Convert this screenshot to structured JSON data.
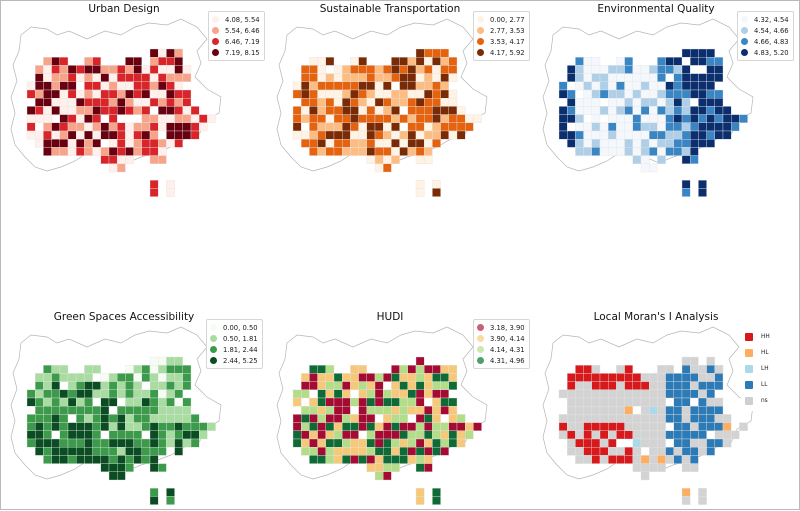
{
  "panels": [
    {
      "title": "Urban Design",
      "colors": [
        "#fff0ec",
        "#f7a48a",
        "#d9242a",
        "#690010"
      ],
      "legend": [
        {
          "label": "4.08, 5.54",
          "color": "#fff0ec"
        },
        {
          "label": "5.54, 6.46",
          "color": "#f7a48a"
        },
        {
          "label": "6.46, 7.19",
          "color": "#d9242a"
        },
        {
          "label": "7.19, 8.15",
          "color": "#690010"
        }
      ],
      "seed": 11
    },
    {
      "title": "Sustainable Transportation",
      "colors": [
        "#fff3e5",
        "#fdbc82",
        "#e5620f",
        "#7a2a04"
      ],
      "legend": [
        {
          "label": "0.00, 2.77",
          "color": "#fff3e5"
        },
        {
          "label": "2.77, 3.53",
          "color": "#fdbc82"
        },
        {
          "label": "3.53, 4.17",
          "color": "#e5620f"
        },
        {
          "label": "4.17, 5.92",
          "color": "#7a2a04"
        }
      ],
      "seed": 23
    },
    {
      "title": "Environmental Quality",
      "colors": [
        "#f4f8fd",
        "#aecfe7",
        "#3a86c4",
        "#0b2f6e"
      ],
      "legend": [
        {
          "label": "4.32, 4.54",
          "color": "#f4f8fd"
        },
        {
          "label": "4.54, 4.66",
          "color": "#aecfe7"
        },
        {
          "label": "4.66, 4.83",
          "color": "#3a86c4"
        },
        {
          "label": "4.83, 5.20",
          "color": "#0b2f6e"
        }
      ],
      "seed": 37
    },
    {
      "title": "Green Spaces Accessibility",
      "colors": [
        "#f6fcf4",
        "#a8dca1",
        "#3b9b4a",
        "#0b4d22"
      ],
      "legend": [
        {
          "label": "0.00, 0.50",
          "color": "#f6fcf4"
        },
        {
          "label": "0.50, 1.81",
          "color": "#a8dca1"
        },
        {
          "label": "1.81, 2.44",
          "color": "#3b9b4a"
        },
        {
          "label": "2.44, 5.25",
          "color": "#0b4d22"
        }
      ],
      "seed": 53
    },
    {
      "title": "HUDI",
      "colors": [
        "#a50b32",
        "#f6c97a",
        "#b4dd8a",
        "#0f6b35"
      ],
      "legend": [
        {
          "label": "3.18, 3.90",
          "color": "#c8607a"
        },
        {
          "label": "3.90, 4.14",
          "color": "#f8dca2"
        },
        {
          "label": "4.14, 4.31",
          "color": "#cce9ab"
        },
        {
          "label": "4.31, 4.96",
          "color": "#4f9e6b"
        }
      ],
      "seed": 71
    },
    {
      "title": "Local Moran's I Analysis",
      "colors": [
        "#d7191c",
        "#fdae61",
        "#abd9e9",
        "#2c7bb6",
        "#d3d3d3"
      ],
      "legend": [
        {
          "label": "HH",
          "color": "#d7191c"
        },
        {
          "label": "HL",
          "color": "#fdae61"
        },
        {
          "label": "LH",
          "color": "#abd9e9"
        },
        {
          "label": "LL",
          "color": "#2c7bb6"
        },
        {
          "label": "ns",
          "color": "#cfcfcf"
        }
      ],
      "seed": 89
    }
  ]
}
